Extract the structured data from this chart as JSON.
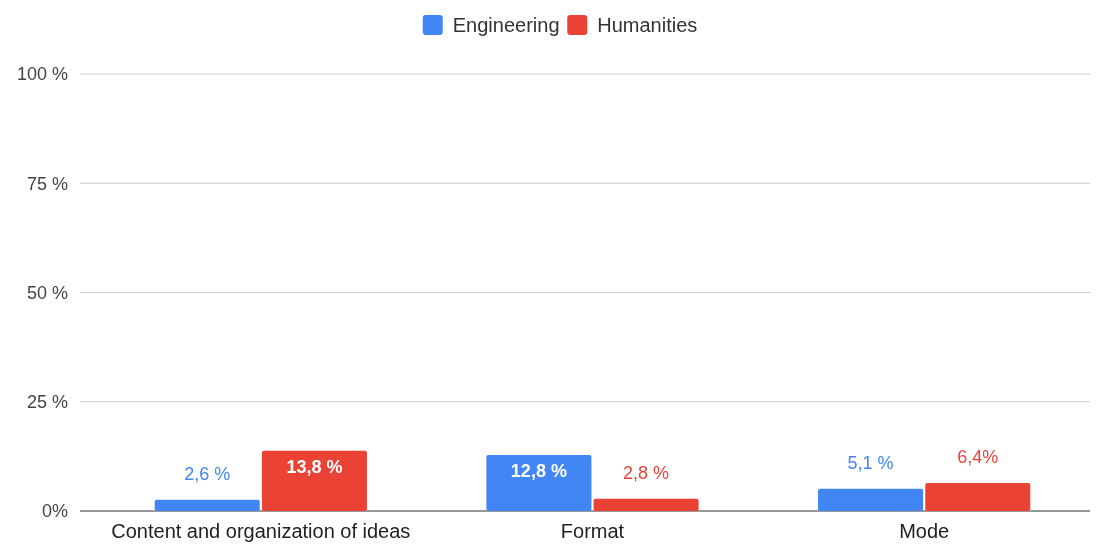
{
  "chart_data": {
    "type": "bar",
    "categories": [
      "Content and organization of ideas",
      "Format",
      "Mode"
    ],
    "series": [
      {
        "name": "Engineering",
        "color": "#4285f4",
        "values": [
          2.6,
          12.8,
          5.1
        ],
        "value_labels": [
          "2,6 %",
          "12,8 %",
          "5,1 %"
        ]
      },
      {
        "name": "Humanities",
        "color": "#ea4335",
        "values": [
          13.8,
          2.8,
          6.4
        ],
        "value_labels": [
          "13,8 %",
          "2,8 %",
          "6,4%"
        ]
      }
    ],
    "ylim": [
      0,
      100
    ],
    "yticks": [
      {
        "value": 0,
        "label": "0%"
      },
      {
        "value": 25,
        "label": "25 %"
      },
      {
        "value": 50,
        "label": "50 %"
      },
      {
        "value": 75,
        "label": "75 %"
      },
      {
        "value": 100,
        "label": "100 %"
      }
    ],
    "grid": "y",
    "legend": "top"
  }
}
